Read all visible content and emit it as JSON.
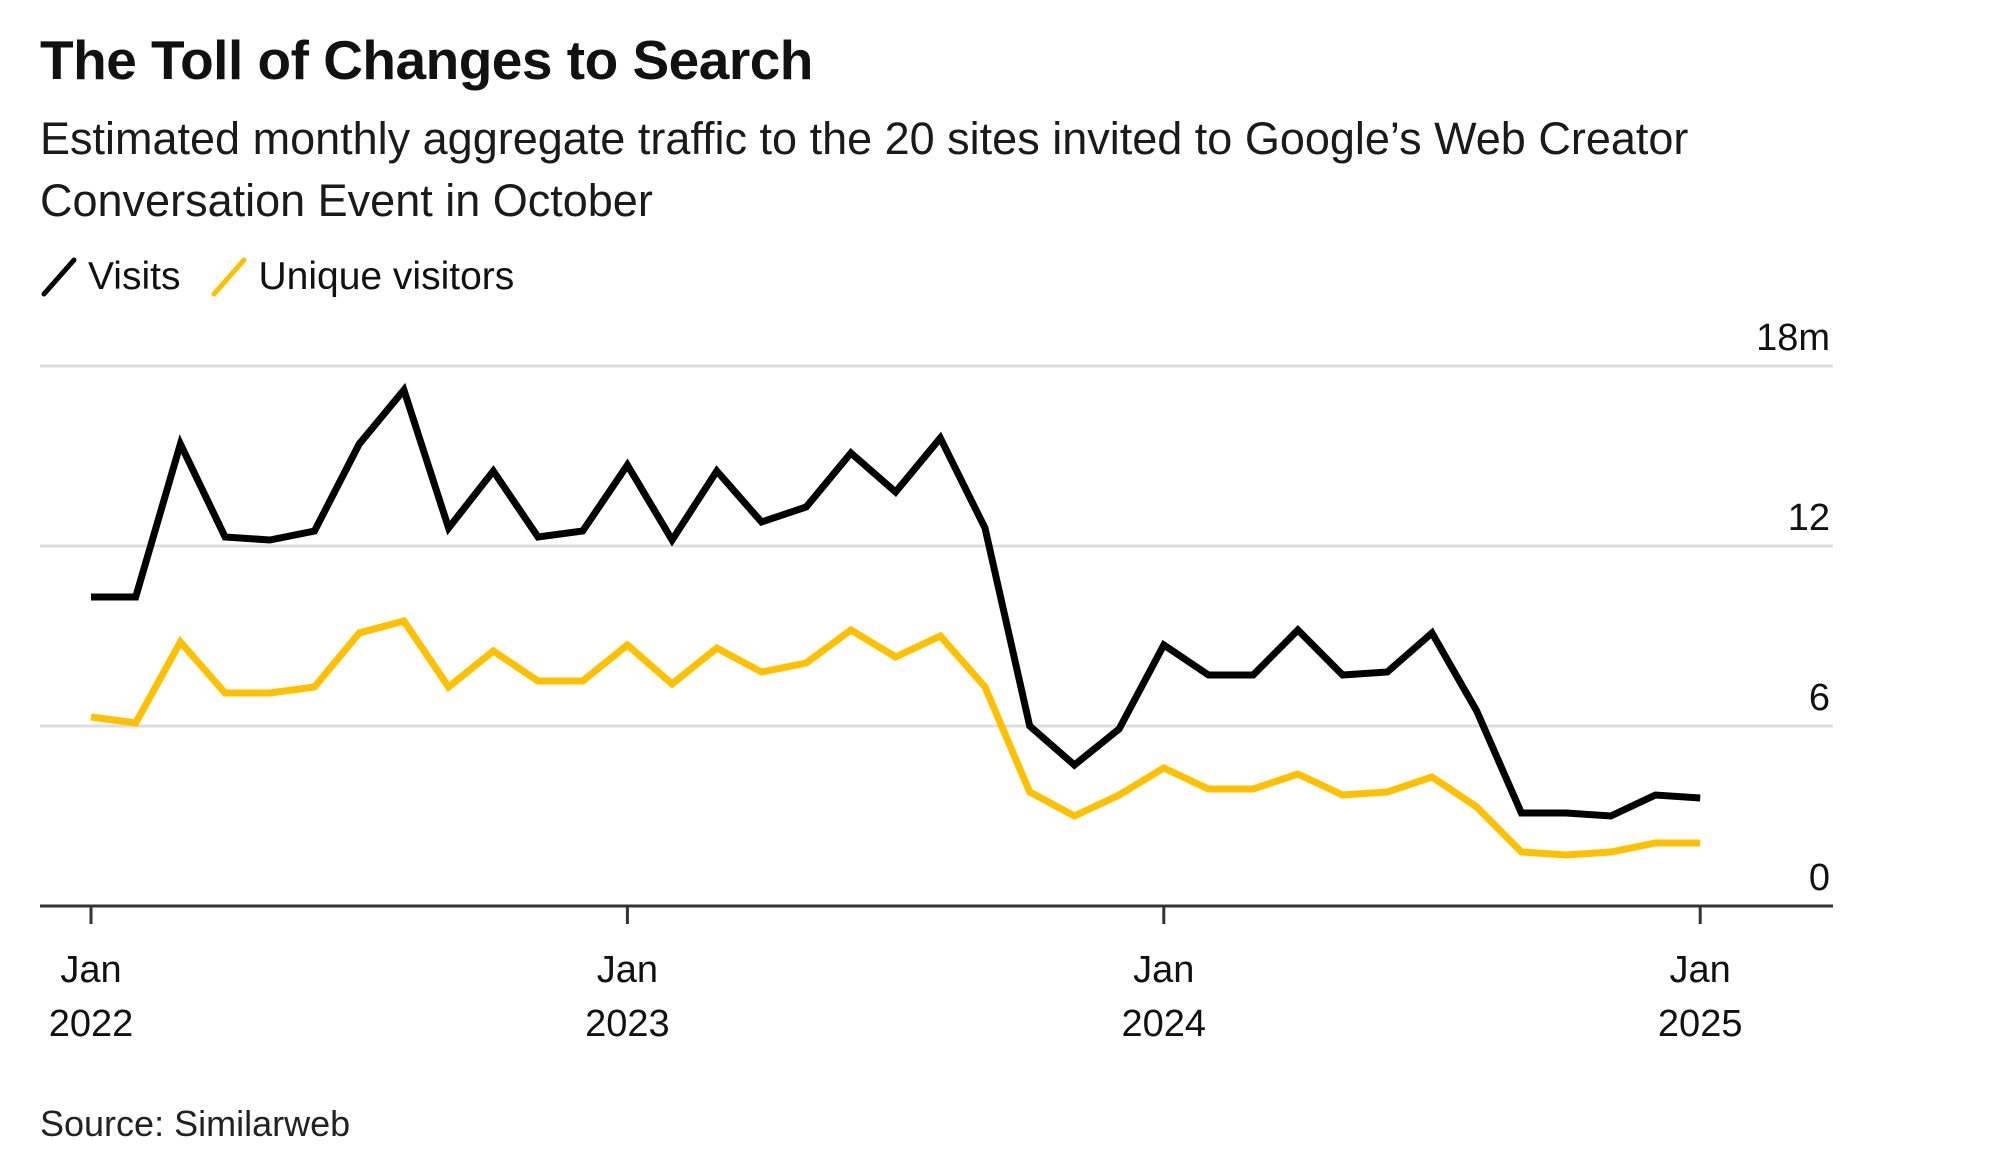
{
  "title": "The Toll of Changes to Search",
  "subtitle": "Estimated monthly aggregate traffic to the 20 sites invited to Google’s Web Creator Conversation Event in October",
  "source": "Source: Similarweb",
  "colors": {
    "visits": "#000000",
    "unique_visitors": "#ffc000",
    "grid": "#dddddd",
    "axis": "#333333"
  },
  "chart_data": {
    "type": "line",
    "legend_placement": "top-left",
    "grid": true,
    "y_axis_side": "right",
    "ylim": [
      0,
      18
    ],
    "y_ticks": [
      {
        "value": 0,
        "label": "0"
      },
      {
        "value": 6,
        "label": "6"
      },
      {
        "value": 12,
        "label": "12"
      },
      {
        "value": 18,
        "label": "18m"
      }
    ],
    "x_ticks": [
      {
        "index": 0,
        "line1": "Jan",
        "line2": "2022"
      },
      {
        "index": 12,
        "line1": "Jan",
        "line2": "2023"
      },
      {
        "index": 24,
        "line1": "Jan",
        "line2": "2024"
      },
      {
        "index": 36,
        "line1": "Jan",
        "line2": "2025"
      }
    ],
    "x": [
      "2022-01",
      "2022-02",
      "2022-03",
      "2022-04",
      "2022-05",
      "2022-06",
      "2022-07",
      "2022-08",
      "2022-09",
      "2022-10",
      "2022-11",
      "2022-12",
      "2023-01",
      "2023-02",
      "2023-03",
      "2023-04",
      "2023-05",
      "2023-06",
      "2023-07",
      "2023-08",
      "2023-09",
      "2023-10",
      "2023-11",
      "2023-12",
      "2024-01",
      "2024-02",
      "2024-03",
      "2024-04",
      "2024-05",
      "2024-06",
      "2024-07",
      "2024-08",
      "2024-09",
      "2024-10",
      "2024-11",
      "2024-12",
      "2025-01"
    ],
    "series": [
      {
        "name": "Visits",
        "color": "#000000",
        "values": [
          10.3,
          10.3,
          15.4,
          12.3,
          12.2,
          12.5,
          15.4,
          17.2,
          12.6,
          14.5,
          12.3,
          12.5,
          14.7,
          12.2,
          14.5,
          12.8,
          13.3,
          15.1,
          13.8,
          15.6,
          12.6,
          6.0,
          4.7,
          5.9,
          8.7,
          7.7,
          7.7,
          9.2,
          7.7,
          7.8,
          9.1,
          6.5,
          3.1,
          3.1,
          3.0,
          3.7,
          3.6
        ]
      },
      {
        "name": "Unique visitors",
        "color": "#ffc000",
        "values": [
          6.3,
          6.1,
          8.8,
          7.1,
          7.1,
          7.3,
          9.1,
          9.5,
          7.3,
          8.5,
          7.5,
          7.5,
          8.7,
          7.4,
          8.6,
          7.8,
          8.1,
          9.2,
          8.3,
          9.0,
          7.3,
          3.8,
          3.0,
          3.7,
          4.6,
          3.9,
          3.9,
          4.4,
          3.7,
          3.8,
          4.3,
          3.3,
          1.8,
          1.7,
          1.8,
          2.1,
          2.1
        ]
      }
    ]
  }
}
